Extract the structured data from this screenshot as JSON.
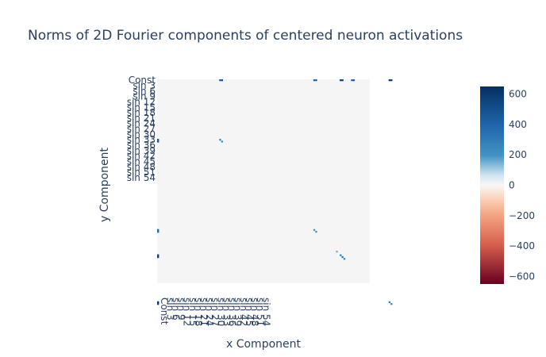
{
  "chart_data": {
    "type": "heatmap",
    "title": "Norms of 2D Fourier components of centered neuron activations",
    "xlabel": "x Component",
    "ylabel": "y Component",
    "x_tick_labels": [
      "Const",
      "sin 3",
      "sin 6",
      "sin 9",
      "sin 12",
      "sin 15",
      "sin 18",
      "sin 21",
      "sin 24",
      "sin 27",
      "sin 30",
      "sin 33",
      "sin 36",
      "sin 39",
      "sin 42",
      "sin 45",
      "sin 48",
      "sin 51",
      "sin 54"
    ],
    "y_tick_labels": [
      "Const",
      "sin 3",
      "sin 6",
      "sin 9",
      "sin 12",
      "sin 15",
      "sin 18",
      "sin 21",
      "sin 24",
      "sin 27",
      "sin 30",
      "sin 33",
      "sin 36",
      "sin 39",
      "sin 42",
      "sin 45",
      "sin 48",
      "sin 51",
      "sin 54"
    ],
    "x_tick_index_step": 3,
    "y_tick_index_step": 3,
    "grid_size": 113,
    "background_value": 0,
    "colorscale": "RdBu",
    "zmin": -650,
    "zmax": 650,
    "colorbar_ticks": [
      600,
      400,
      200,
      0,
      -200,
      -400,
      -600
    ],
    "colorbar_tick_labels": [
      "600",
      "400",
      "200",
      "0",
      "−200",
      "−400",
      "−600"
    ],
    "cells": [
      {
        "xi": 33,
        "yi": 0,
        "value": 480
      },
      {
        "xi": 34,
        "yi": 0,
        "value": 480
      },
      {
        "xi": 83,
        "yi": 0,
        "value": 420
      },
      {
        "xi": 84,
        "yi": 0,
        "value": 420
      },
      {
        "xi": 97,
        "yi": 0,
        "value": 560
      },
      {
        "xi": 98,
        "yi": 0,
        "value": 600
      },
      {
        "xi": 103,
        "yi": 0,
        "value": 430
      },
      {
        "xi": 104,
        "yi": 0,
        "value": 430
      },
      {
        "xi": 123,
        "yi": 0,
        "value": 640
      },
      {
        "xi": 124,
        "yi": 0,
        "value": 600
      },
      {
        "xi": 0,
        "yi": 33,
        "value": 500
      },
      {
        "xi": 0,
        "yi": 34,
        "value": 500
      },
      {
        "xi": 33,
        "yi": 33,
        "value": 260
      },
      {
        "xi": 34,
        "yi": 34,
        "value": 230
      },
      {
        "xi": 0,
        "yi": 83,
        "value": 380
      },
      {
        "xi": 0,
        "yi": 84,
        "value": 380
      },
      {
        "xi": 83,
        "yi": 83,
        "value": 200
      },
      {
        "xi": 84,
        "yi": 84,
        "value": 200
      },
      {
        "xi": 0,
        "yi": 97,
        "value": 620
      },
      {
        "xi": 0,
        "yi": 98,
        "value": 600
      },
      {
        "xi": 95,
        "yi": 95,
        "value": 150
      },
      {
        "xi": 97,
        "yi": 97,
        "value": 260
      },
      {
        "xi": 98,
        "yi": 98,
        "value": 330
      },
      {
        "xi": 99,
        "yi": 99,
        "value": 260
      },
      {
        "xi": 0,
        "yi": 123,
        "value": 640
      },
      {
        "xi": 0,
        "yi": 124,
        "value": 600
      },
      {
        "xi": 123,
        "yi": 123,
        "value": 300
      },
      {
        "xi": 124,
        "yi": 124,
        "value": 260
      }
    ]
  }
}
